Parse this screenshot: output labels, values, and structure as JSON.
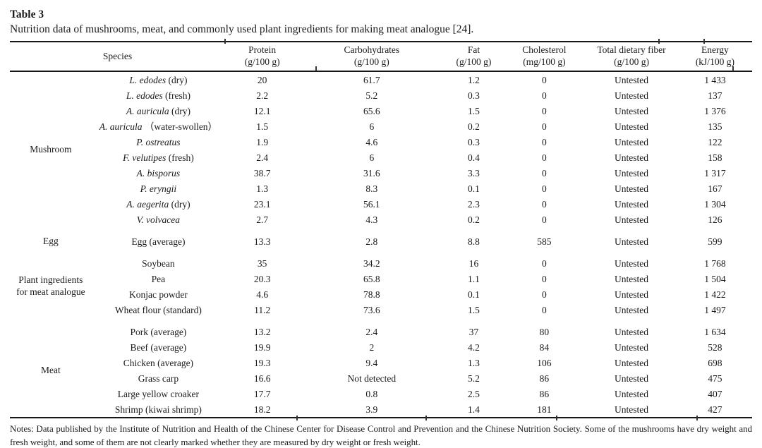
{
  "caption": {
    "label": "Table 3",
    "description": "Nutrition data of mushrooms, meat, and commonly used plant ingredients for making meat analogue [24]."
  },
  "table": {
    "columns": [
      {
        "title": "Species",
        "unit": ""
      },
      {
        "title": "Protein",
        "unit": "(g/100 g)"
      },
      {
        "title": "Carbohydrates",
        "unit": "(g/100 g)"
      },
      {
        "title": "Fat",
        "unit": "(g/100 g)"
      },
      {
        "title": "Cholesterol",
        "unit": "(mg/100 g)"
      },
      {
        "title": "Total dietary fiber",
        "unit": "(g/100 g)"
      },
      {
        "title": "Energy",
        "unit": "(kJ/100 g)"
      }
    ],
    "groups": [
      {
        "label": "Mushroom",
        "rows": [
          {
            "name": "L. edodes",
            "suffix": "(dry)",
            "italic": true,
            "values": [
              "20",
              "61.7",
              "1.2",
              "0",
              "Untested",
              "1 433"
            ]
          },
          {
            "name": "L. edodes",
            "suffix": "(fresh)",
            "italic": true,
            "values": [
              "2.2",
              "5.2",
              "0.3",
              "0",
              "Untested",
              "137"
            ]
          },
          {
            "name": "A. auricula",
            "suffix": "(dry)",
            "italic": true,
            "values": [
              "12.1",
              "65.6",
              "1.5",
              "0",
              "Untested",
              "1 376"
            ]
          },
          {
            "name": "A. auricula",
            "suffix": "（water-swollen）",
            "italic": true,
            "values": [
              "1.5",
              "6",
              "0.2",
              "0",
              "Untested",
              "135"
            ]
          },
          {
            "name": "P. ostreatus",
            "suffix": "",
            "italic": true,
            "values": [
              "1.9",
              "4.6",
              "0.3",
              "0",
              "Untested",
              "122"
            ]
          },
          {
            "name": "F. velutipes",
            "suffix": "(fresh)",
            "italic": true,
            "values": [
              "2.4",
              "6",
              "0.4",
              "0",
              "Untested",
              "158"
            ]
          },
          {
            "name": "A. bisporus",
            "suffix": "",
            "italic": true,
            "values": [
              "38.7",
              "31.6",
              "3.3",
              "0",
              "Untested",
              "1 317"
            ]
          },
          {
            "name": "P. eryngii",
            "suffix": "",
            "italic": true,
            "values": [
              "1.3",
              "8.3",
              "0.1",
              "0",
              "Untested",
              "167"
            ]
          },
          {
            "name": "A. aegerita",
            "suffix": "(dry)",
            "italic": true,
            "values": [
              "23.1",
              "56.1",
              "2.3",
              "0",
              "Untested",
              "1 304"
            ]
          },
          {
            "name": "V. volvacea",
            "suffix": "",
            "italic": true,
            "values": [
              "2.7",
              "4.3",
              "0.2",
              "0",
              "Untested",
              "126"
            ]
          }
        ]
      },
      {
        "label": "Egg",
        "rows": [
          {
            "name": "Egg (average)",
            "suffix": "",
            "italic": false,
            "values": [
              "13.3",
              "2.8",
              "8.8",
              "585",
              "Untested",
              "599"
            ]
          }
        ]
      },
      {
        "label": "Plant ingredients for meat analogue",
        "rows": [
          {
            "name": "Soybean",
            "suffix": "",
            "italic": false,
            "values": [
              "35",
              "34.2",
              "16",
              "0",
              "Untested",
              "1 768"
            ]
          },
          {
            "name": "Pea",
            "suffix": "",
            "italic": false,
            "values": [
              "20.3",
              "65.8",
              "1.1",
              "0",
              "Untested",
              "1 504"
            ]
          },
          {
            "name": "Konjac powder",
            "suffix": "",
            "italic": false,
            "values": [
              "4.6",
              "78.8",
              "0.1",
              "0",
              "Untested",
              "1 422"
            ]
          },
          {
            "name": "Wheat flour (standard)",
            "suffix": "",
            "italic": false,
            "values": [
              "11.2",
              "73.6",
              "1.5",
              "0",
              "Untested",
              "1 497"
            ]
          }
        ]
      },
      {
        "label": "Meat",
        "rows": [
          {
            "name": "Pork (average)",
            "suffix": "",
            "italic": false,
            "values": [
              "13.2",
              "2.4",
              "37",
              "80",
              "Untested",
              "1 634"
            ]
          },
          {
            "name": "Beef (average)",
            "suffix": "",
            "italic": false,
            "values": [
              "19.9",
              "2",
              "4.2",
              "84",
              "Untested",
              "528"
            ]
          },
          {
            "name": "Chicken (average)",
            "suffix": "",
            "italic": false,
            "values": [
              "19.3",
              "9.4",
              "1.3",
              "106",
              "Untested",
              "698"
            ]
          },
          {
            "name": "Grass carp",
            "suffix": "",
            "italic": false,
            "values": [
              "16.6",
              "Not detected",
              "5.2",
              "86",
              "Untested",
              "475"
            ]
          },
          {
            "name": "Large yellow croaker",
            "suffix": "",
            "italic": false,
            "values": [
              "17.7",
              "0.8",
              "2.5",
              "86",
              "Untested",
              "407"
            ]
          },
          {
            "name": "Shrimp (kiwai shrimp)",
            "suffix": "",
            "italic": false,
            "values": [
              "18.2",
              "3.9",
              "1.4",
              "181",
              "Untested",
              "427"
            ]
          }
        ]
      }
    ]
  },
  "notes": {
    "text": "Notes: Data published by the Institute of Nutrition and Health of the Chinese Center for Disease Control and Prevention and the Chinese Nutrition Society. Some of the mushrooms have dry weight and fresh weight, and some of them are not clearly marked whether they are measured by dry weight or fresh weight."
  },
  "colors": {
    "background": "#ffffff",
    "text": "#1b1b1b",
    "rule": "#161616"
  }
}
